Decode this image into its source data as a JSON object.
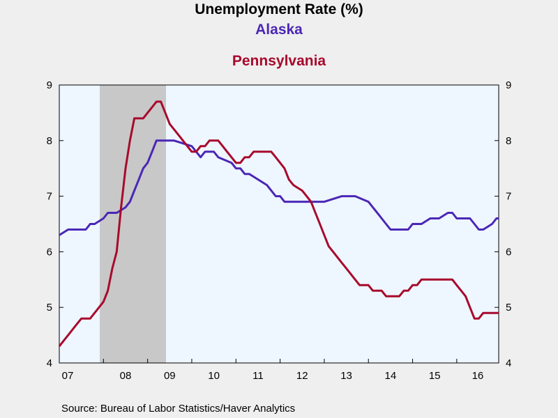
{
  "chart_data": {
    "type": "line",
    "title": "Unemployment Rate (%)",
    "xlabel": "",
    "ylabel": "",
    "ylim": [
      4,
      9
    ],
    "yticks": [
      4,
      5,
      6,
      7,
      8,
      9
    ],
    "xlim": [
      2007.0,
      2016.95
    ],
    "xticks": [
      {
        "label": "07",
        "x": 2007.0
      },
      {
        "label": "08",
        "x": 2008.0
      },
      {
        "label": "09",
        "x": 2009.0
      },
      {
        "label": "10",
        "x": 2010.0
      },
      {
        "label": "11",
        "x": 2011.0
      },
      {
        "label": "12",
        "x": 2012.0
      },
      {
        "label": "13",
        "x": 2013.0
      },
      {
        "label": "14",
        "x": 2014.0
      },
      {
        "label": "15",
        "x": 2015.0
      },
      {
        "label": "16",
        "x": 2016.0
      }
    ],
    "recession": {
      "start": "2007-12",
      "end": "2009-06"
    },
    "plot_background": "#eef6ff",
    "recession_color": "#c8c8c8",
    "series": [
      {
        "name": "Alaska",
        "color": "#4b27b5",
        "x": [
          2007.0,
          2007.2,
          2007.3,
          2007.6,
          2007.7,
          2007.8,
          2008.0,
          2008.1,
          2008.2,
          2008.3,
          2008.5,
          2008.6,
          2008.7,
          2008.8,
          2008.9,
          2009.0,
          2009.1,
          2009.2,
          2009.4,
          2009.5,
          2009.6,
          2010.0,
          2010.1,
          2010.2,
          2010.3,
          2010.4,
          2010.5,
          2010.6,
          2010.9,
          2011.0,
          2011.1,
          2011.2,
          2011.3,
          2011.7,
          2011.8,
          2011.9,
          2012.0,
          2012.1,
          2012.2,
          2012.3,
          2012.5,
          2012.6,
          2013.0,
          2013.4,
          2013.5,
          2013.6,
          2013.7,
          2014.0,
          2014.1,
          2014.2,
          2014.3,
          2014.4,
          2014.5,
          2014.6,
          2014.9,
          2015.0,
          2015.1,
          2015.2,
          2015.4,
          2015.5,
          2015.6,
          2015.8,
          2015.9,
          2016.0,
          2016.1,
          2016.3,
          2016.4,
          2016.5,
          2016.6,
          2016.8,
          2016.9,
          2016.95
        ],
        "y": [
          6.3,
          6.4,
          6.4,
          6.4,
          6.5,
          6.5,
          6.6,
          6.7,
          6.7,
          6.7,
          6.8,
          6.9,
          7.1,
          7.3,
          7.5,
          7.6,
          7.8,
          8.0,
          8.0,
          8.0,
          8.0,
          7.9,
          7.8,
          7.7,
          7.8,
          7.8,
          7.8,
          7.7,
          7.6,
          7.5,
          7.5,
          7.4,
          7.4,
          7.2,
          7.1,
          7.0,
          7.0,
          6.9,
          6.9,
          6.9,
          6.9,
          6.9,
          6.9,
          7.0,
          7.0,
          7.0,
          7.0,
          6.9,
          6.8,
          6.7,
          6.6,
          6.5,
          6.4,
          6.4,
          6.4,
          6.5,
          6.5,
          6.5,
          6.6,
          6.6,
          6.6,
          6.7,
          6.7,
          6.6,
          6.6,
          6.6,
          6.5,
          6.4,
          6.4,
          6.5,
          6.6,
          6.6
        ]
      },
      {
        "name": "Pennsylvania",
        "color": "#a8092c",
        "x": [
          2007.0,
          2007.1,
          2007.2,
          2007.3,
          2007.4,
          2007.5,
          2007.6,
          2007.7,
          2007.9,
          2008.0,
          2008.1,
          2008.2,
          2008.3,
          2008.4,
          2008.5,
          2008.6,
          2008.7,
          2008.8,
          2008.9,
          2009.0,
          2009.1,
          2009.2,
          2009.3,
          2009.4,
          2009.5,
          2009.6,
          2009.7,
          2009.8,
          2009.9,
          2010.0,
          2010.1,
          2010.2,
          2010.3,
          2010.4,
          2010.5,
          2010.6,
          2010.7,
          2010.8,
          2010.9,
          2011.0,
          2011.1,
          2011.2,
          2011.3,
          2011.4,
          2011.5,
          2011.6,
          2011.7,
          2011.8,
          2011.9,
          2012.0,
          2012.1,
          2012.2,
          2012.3,
          2012.5,
          2012.6,
          2012.7,
          2012.8,
          2012.9,
          2013.0,
          2013.1,
          2013.2,
          2013.3,
          2013.4,
          2013.5,
          2013.6,
          2013.7,
          2013.8,
          2013.9,
          2014.0,
          2014.1,
          2014.2,
          2014.3,
          2014.4,
          2014.5,
          2014.6,
          2014.7,
          2014.8,
          2014.9,
          2015.0,
          2015.1,
          2015.2,
          2015.3,
          2015.4,
          2015.5,
          2015.6,
          2015.7,
          2015.8,
          2015.9,
          2016.0,
          2016.1,
          2016.2,
          2016.3,
          2016.4,
          2016.5,
          2016.6,
          2016.7,
          2016.8,
          2016.95
        ],
        "y": [
          4.3,
          4.4,
          4.5,
          4.6,
          4.7,
          4.8,
          4.8,
          4.8,
          5.0,
          5.1,
          5.3,
          5.7,
          6.0,
          6.8,
          7.5,
          8.0,
          8.4,
          8.4,
          8.4,
          8.5,
          8.6,
          8.7,
          8.7,
          8.5,
          8.3,
          8.2,
          8.1,
          8.0,
          7.9,
          7.8,
          7.8,
          7.9,
          7.9,
          8.0,
          8.0,
          8.0,
          7.9,
          7.8,
          7.7,
          7.6,
          7.6,
          7.7,
          7.7,
          7.8,
          7.8,
          7.8,
          7.8,
          7.8,
          7.7,
          7.6,
          7.5,
          7.3,
          7.2,
          7.1,
          7.0,
          6.9,
          6.7,
          6.5,
          6.3,
          6.1,
          6.0,
          5.9,
          5.8,
          5.7,
          5.6,
          5.5,
          5.4,
          5.4,
          5.4,
          5.3,
          5.3,
          5.3,
          5.2,
          5.2,
          5.2,
          5.2,
          5.3,
          5.3,
          5.4,
          5.4,
          5.5,
          5.5,
          5.5,
          5.5,
          5.5,
          5.5,
          5.5,
          5.5,
          5.4,
          5.3,
          5.2,
          5.0,
          4.8,
          4.8,
          4.9,
          4.9,
          4.9,
          4.9
        ]
      }
    ]
  },
  "source_text": "Source:  Bureau of Labor Statistics/Haver Analytics"
}
